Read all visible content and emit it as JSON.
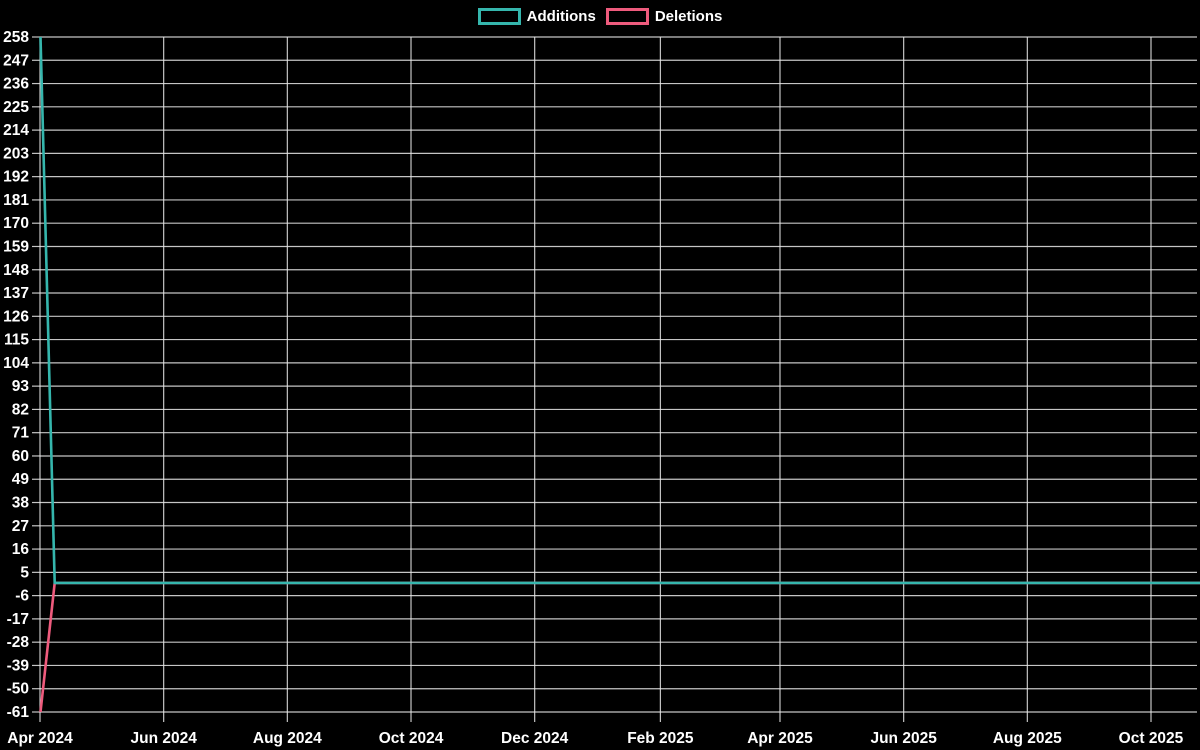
{
  "chart_data": {
    "type": "line",
    "title": "",
    "xlabel": "",
    "ylabel": "",
    "background_color": "#000000",
    "grid": true,
    "grid_color": "#e8e8e8",
    "text_color": "#ffffff",
    "ylim": [
      -61,
      258
    ],
    "y_tick_step": 11,
    "y_tick_labels": [
      258,
      247,
      236,
      225,
      214,
      203,
      192,
      181,
      170,
      159,
      148,
      137,
      126,
      115,
      104,
      93,
      82,
      71,
      60,
      49,
      38,
      27,
      16,
      5,
      -6,
      -17,
      -28,
      -39,
      -50,
      -61
    ],
    "x_axis": {
      "start_label": "Apr 2024",
      "end_label": "Oct 2025",
      "tick_labels": [
        "Apr 2024",
        "Jun 2024",
        "Aug 2024",
        "Oct 2024",
        "Dec 2024",
        "Feb 2025",
        "Apr 2025",
        "Jun 2025",
        "Aug 2025",
        "Oct 2025"
      ],
      "tick_day_offsets": [
        0,
        61,
        122,
        183,
        244,
        306,
        365,
        426,
        487,
        548
      ],
      "plot_end_day": 570
    },
    "legend": {
      "position": "top-center",
      "items": [
        {
          "label": "Additions",
          "color": "#35b6ad"
        },
        {
          "label": "Deletions",
          "color": "#ee5b7d"
        }
      ]
    },
    "series": [
      {
        "name": "Additions",
        "color": "#35b6ad",
        "points": [
          {
            "day": 0,
            "value": 258
          },
          {
            "day": 7,
            "value": 0
          },
          {
            "day": 570,
            "value": 0
          }
        ]
      },
      {
        "name": "Deletions",
        "color": "#ee5b7d",
        "points": [
          {
            "day": 0,
            "value": -61
          },
          {
            "day": 7,
            "value": 0
          },
          {
            "day": 570,
            "value": 0
          }
        ]
      }
    ],
    "note": "Weekly code frequency: single spike in the first week of Apr 2024 (+258 additions, -61 deletions); all subsequent weeks are 0."
  }
}
